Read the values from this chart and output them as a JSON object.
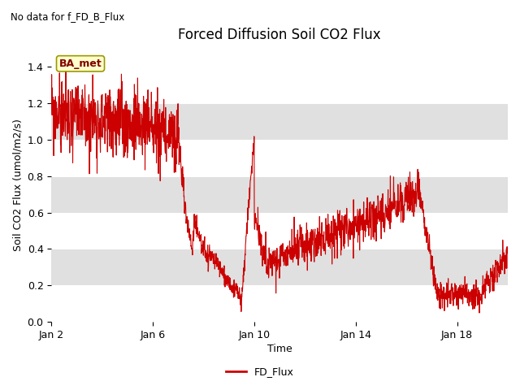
{
  "title": "Forced Diffusion Soil CO2 Flux",
  "subtitle": "No data for f_FD_B_Flux",
  "ylabel": "Soil CO2 Flux (umol/m2/s)",
  "xlabel": "Time",
  "legend_label": "FD_Flux",
  "line_color": "#cc0000",
  "ylim": [
    0.0,
    1.5
  ],
  "yticks": [
    0.0,
    0.2,
    0.4,
    0.6,
    0.8,
    1.0,
    1.2,
    1.4
  ],
  "xtick_labels": [
    "Jan 2",
    "Jan 6",
    "Jan 10",
    "Jan 14",
    "Jan 18"
  ],
  "xtick_positions": [
    0,
    4,
    8,
    12,
    16
  ],
  "xlim": [
    0,
    18
  ],
  "annotation_text": "BA_met",
  "band_colors": [
    "#ffffff",
    "#e0e0e0"
  ],
  "figsize": [
    6.4,
    4.8
  ],
  "dpi": 100
}
